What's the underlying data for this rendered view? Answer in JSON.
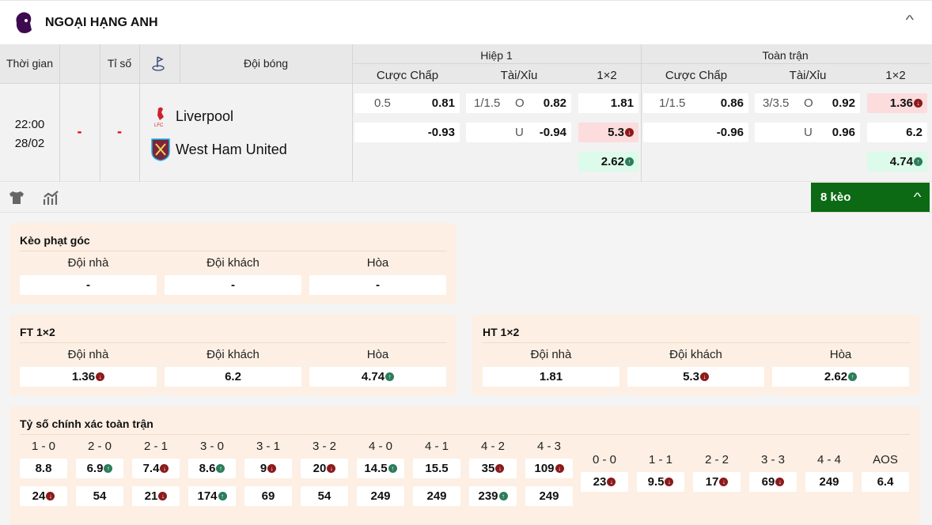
{
  "league": {
    "name": "NGOẠI HẠNG ANH",
    "icon": "premier-league-lion-logo"
  },
  "columns": {
    "time": "Thời gian",
    "score": "Tỉ số",
    "corner_icon": "corner-flag-icon",
    "team": "Đội bóng",
    "half": "Hiệp 1",
    "full": "Toàn trận",
    "handicap": "Cược Chấp",
    "ou": "Tài/Xỉu",
    "x12": "1×2"
  },
  "match": {
    "time": "22:00",
    "date": "28/02",
    "ht_score": "-",
    "score": "-",
    "home": "Liverpool",
    "away": "West Ham United",
    "h1": {
      "hdp": [
        {
          "line": "0.5",
          "odd": "0.81"
        },
        {
          "line": "",
          "odd": "-0.93"
        }
      ],
      "ou": [
        {
          "line": "1/1.5",
          "side": "O",
          "odd": "0.82"
        },
        {
          "line": "",
          "side": "U",
          "odd": "-0.94"
        }
      ],
      "x12": [
        {
          "odd": "1.81",
          "trend": ""
        },
        {
          "odd": "5.3",
          "trend": "down"
        },
        {
          "odd": "2.62",
          "trend": "up"
        }
      ]
    },
    "ft": {
      "hdp": [
        {
          "line": "1/1.5",
          "odd": "0.86"
        },
        {
          "line": "",
          "odd": "-0.96"
        }
      ],
      "ou": [
        {
          "line": "3/3.5",
          "side": "O",
          "odd": "0.92"
        },
        {
          "line": "",
          "side": "U",
          "odd": "0.96"
        }
      ],
      "x12": [
        {
          "odd": "1.36",
          "trend": "down"
        },
        {
          "odd": "6.2",
          "trend": ""
        },
        {
          "odd": "4.74",
          "trend": "up"
        }
      ]
    }
  },
  "more_button": "8 kèo",
  "labels": {
    "home": "Đội nhà",
    "away": "Đội khách",
    "draw": "Hòa"
  },
  "corner": {
    "title": "Kèo phạt góc",
    "values": [
      {
        "odd": "-",
        "trend": ""
      },
      {
        "odd": "-",
        "trend": ""
      },
      {
        "odd": "-",
        "trend": ""
      }
    ]
  },
  "ft1x2": {
    "title": "FT 1×2",
    "values": [
      {
        "odd": "1.36",
        "trend": "down"
      },
      {
        "odd": "6.2",
        "trend": ""
      },
      {
        "odd": "4.74",
        "trend": "up"
      }
    ]
  },
  "ht1x2": {
    "title": "HT 1×2",
    "values": [
      {
        "odd": "1.81",
        "trend": ""
      },
      {
        "odd": "5.3",
        "trend": "down"
      },
      {
        "odd": "2.62",
        "trend": "up"
      }
    ]
  },
  "exact": {
    "title": "Tỷ số chính xác toàn trận",
    "pairs": [
      {
        "score": "1 - 0",
        "home": {
          "odd": "8.8",
          "trend": ""
        },
        "away": {
          "odd": "24",
          "trend": "down"
        }
      },
      {
        "score": "2 - 0",
        "home": {
          "odd": "6.9",
          "trend": "up"
        },
        "away": {
          "odd": "54",
          "trend": ""
        }
      },
      {
        "score": "2 - 1",
        "home": {
          "odd": "7.4",
          "trend": "down"
        },
        "away": {
          "odd": "21",
          "trend": "down"
        }
      },
      {
        "score": "3 - 0",
        "home": {
          "odd": "8.6",
          "trend": "up"
        },
        "away": {
          "odd": "174",
          "trend": "up"
        }
      },
      {
        "score": "3 - 1",
        "home": {
          "odd": "9",
          "trend": "down"
        },
        "away": {
          "odd": "69",
          "trend": ""
        }
      },
      {
        "score": "3 - 2",
        "home": {
          "odd": "20",
          "trend": "down"
        },
        "away": {
          "odd": "54",
          "trend": ""
        }
      },
      {
        "score": "4 - 0",
        "home": {
          "odd": "14.5",
          "trend": "up"
        },
        "away": {
          "odd": "249",
          "trend": ""
        }
      },
      {
        "score": "4 - 1",
        "home": {
          "odd": "15.5",
          "trend": ""
        },
        "away": {
          "odd": "249",
          "trend": ""
        }
      },
      {
        "score": "4 - 2",
        "home": {
          "odd": "35",
          "trend": "down"
        },
        "away": {
          "odd": "239",
          "trend": "up"
        }
      },
      {
        "score": "4 - 3",
        "home": {
          "odd": "109",
          "trend": "down"
        },
        "away": {
          "odd": "249",
          "trend": ""
        }
      }
    ],
    "draws": [
      {
        "score": "0 - 0",
        "odd": "23",
        "trend": "down"
      },
      {
        "score": "1 - 1",
        "odd": "9.5",
        "trend": "down"
      },
      {
        "score": "2 - 2",
        "odd": "17",
        "trend": "down"
      },
      {
        "score": "3 - 3",
        "odd": "69",
        "trend": "down"
      },
      {
        "score": "4 - 4",
        "odd": "249",
        "trend": ""
      },
      {
        "score": "AOS",
        "odd": "6.4",
        "trend": ""
      }
    ]
  },
  "colors": {
    "up_bg": "#dcfbea",
    "down_bg": "#fcdcdc",
    "more_button": "#0b6a13",
    "panel": "#fdefe3"
  }
}
